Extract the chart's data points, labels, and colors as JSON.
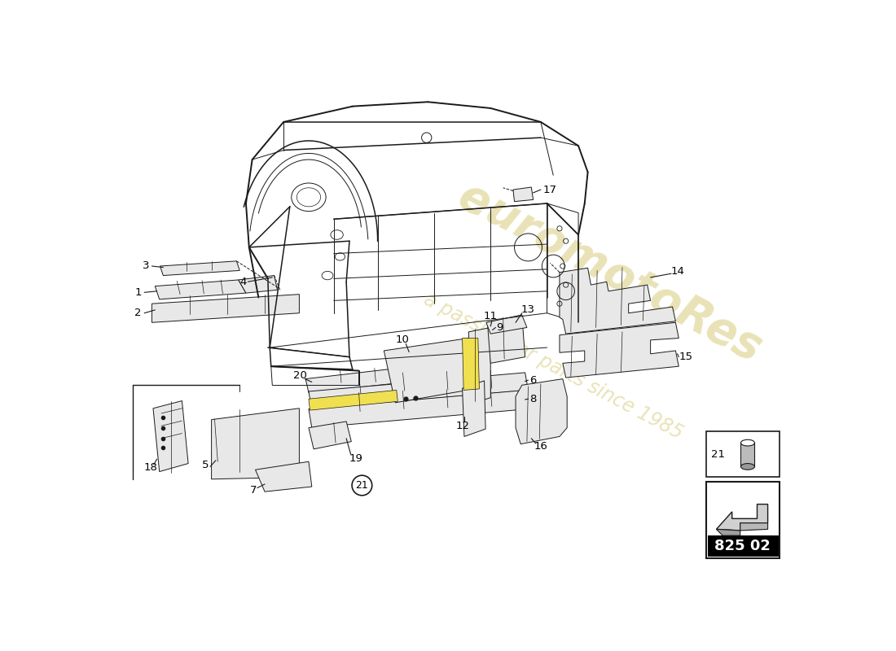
{
  "background_color": "#ffffff",
  "watermark_color_1": "#c8b84a",
  "watermark_color_2": "#c8b84a",
  "part_number_text": "825 02",
  "line_color": "#1a1a1a",
  "light_gray": "#e8e8e8",
  "yellow_fill": "#f0e050",
  "label_fontsize": 9.5,
  "lw_main": 1.1,
  "lw_thin": 0.7,
  "lw_thick": 1.4
}
